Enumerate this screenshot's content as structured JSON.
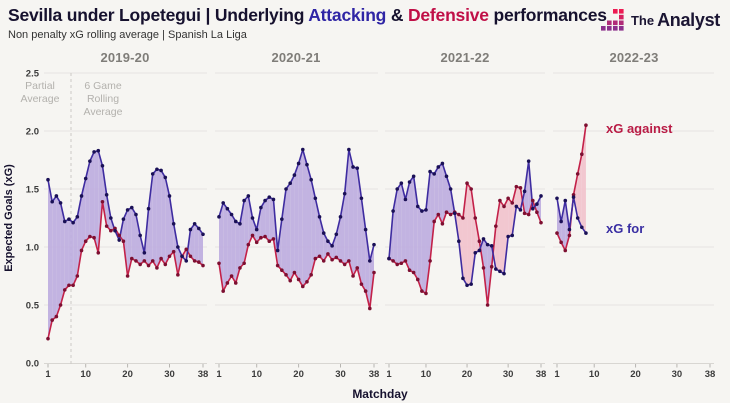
{
  "header": {
    "title_prefix": "Sevilla under Lopetegui | Underlying ",
    "title_attacking": "Attacking",
    "title_amp": " & ",
    "title_defensive": "Defensive",
    "title_suffix": " performances",
    "subtitle": "Non penalty xG rolling average | Spanish La Liga"
  },
  "logo": {
    "the": "The",
    "analyst": "Analyst"
  },
  "annotations": {
    "partial_average_lines": [
      "Partial",
      "Average"
    ],
    "rolling_average_lines": [
      "6 Game",
      "Rolling",
      "Average"
    ]
  },
  "legend": {
    "against_label": "xG against",
    "for_label": "xG for"
  },
  "axes": {
    "y_label": "Expected Goals (xG)",
    "x_label": "Matchday",
    "y_ticks": [
      0.0,
      0.5,
      1.0,
      1.5,
      2.0,
      2.5
    ],
    "x_ticks": [
      1,
      10,
      20,
      30,
      38
    ],
    "ylim": [
      0,
      2.5
    ]
  },
  "colors": {
    "background": "#f6f5f2",
    "for_line": "#3e2ca0",
    "for_dot": "#1a1056",
    "against_line": "#c32149",
    "against_dot": "#7d0f31",
    "fill_for_above": "#bdacdf",
    "fill_against_above": "#f2c2cc",
    "grid": "#e6e4e1",
    "baseline": "#d8d6d2",
    "dashed_line": "#ccc9c5",
    "tick_text": "#3c3c3c",
    "accent_attacking": "#2f25a5",
    "accent_defensive": "#c00f47"
  },
  "chart_data": {
    "type": "line",
    "title": "Sevilla under Lopetegui | Underlying Attacking & Defensive performances",
    "subtitle": "Non penalty xG rolling average | Spanish La Liga",
    "xlabel": "Matchday",
    "ylabel": "Expected Goals (xG)",
    "ylim": [
      0,
      2.5
    ],
    "legend_position": "right",
    "grid": "horizontal",
    "series_names": [
      "xG for",
      "xG against"
    ],
    "seasons": [
      {
        "label": "2019-20",
        "xg_for": [
          1.58,
          1.39,
          1.44,
          1.38,
          1.22,
          1.24,
          1.21,
          1.26,
          1.44,
          1.59,
          1.74,
          1.82,
          1.83,
          1.7,
          1.45,
          1.25,
          1.14,
          1.06,
          1.24,
          1.32,
          1.34,
          1.28,
          1.1,
          0.95,
          1.33,
          1.63,
          1.67,
          1.66,
          1.6,
          1.44,
          1.2,
          1.0,
          0.92,
          0.88,
          1.15,
          1.2,
          1.16,
          1.11
        ],
        "xg_against": [
          0.21,
          0.37,
          0.4,
          0.5,
          0.63,
          0.67,
          0.67,
          0.75,
          0.97,
          1.05,
          1.09,
          1.08,
          0.95,
          1.39,
          1.18,
          1.14,
          1.16,
          1.1,
          1.05,
          0.75,
          0.9,
          0.88,
          0.85,
          0.88,
          0.84,
          0.88,
          0.82,
          0.9,
          0.85,
          0.92,
          0.96,
          0.76,
          0.92,
          0.98,
          0.92,
          0.88,
          0.87,
          0.84
        ]
      },
      {
        "label": "2020-21",
        "xg_for": [
          1.26,
          1.38,
          1.33,
          1.28,
          1.22,
          1.2,
          1.4,
          1.44,
          1.25,
          1.15,
          1.34,
          1.4,
          1.43,
          1.41,
          0.97,
          1.24,
          1.5,
          1.55,
          1.62,
          1.72,
          1.84,
          1.71,
          1.58,
          1.42,
          1.26,
          1.12,
          1.05,
          1.01,
          1.11,
          1.26,
          1.46,
          1.84,
          1.69,
          1.68,
          1.42,
          1.15,
          0.88,
          1.02
        ],
        "xg_against": [
          0.86,
          0.62,
          0.69,
          0.75,
          0.69,
          0.82,
          0.86,
          1.02,
          1.1,
          1.04,
          1.08,
          1.09,
          1.05,
          1.07,
          0.84,
          0.8,
          0.76,
          0.71,
          0.78,
          0.72,
          0.66,
          0.7,
          0.76,
          0.9,
          0.92,
          0.88,
          0.94,
          0.89,
          0.91,
          0.88,
          0.85,
          0.88,
          0.75,
          0.82,
          0.68,
          0.62,
          0.47,
          0.78
        ]
      },
      {
        "label": "2021-22",
        "xg_for": [
          0.9,
          1.31,
          1.5,
          1.55,
          1.41,
          1.56,
          1.61,
          1.35,
          1.31,
          1.32,
          1.65,
          1.63,
          1.69,
          1.72,
          1.61,
          1.5,
          1.29,
          1.05,
          0.73,
          0.67,
          0.68,
          0.95,
          0.97,
          1.07,
          1.02,
          1.01,
          0.81,
          0.79,
          0.77,
          1.09,
          1.1,
          1.35,
          1.32,
          1.48,
          1.74,
          1.33,
          1.37,
          1.44
        ],
        "xg_against": [
          0.9,
          0.88,
          0.85,
          0.86,
          0.88,
          0.8,
          0.78,
          0.72,
          0.62,
          0.6,
          0.88,
          1.22,
          1.28,
          1.2,
          1.3,
          1.28,
          1.3,
          1.28,
          1.25,
          1.55,
          1.5,
          1.25,
          1.05,
          0.82,
          0.5,
          0.83,
          1.18,
          1.4,
          1.35,
          1.42,
          1.38,
          1.52,
          1.51,
          1.29,
          1.28,
          1.4,
          1.3,
          1.21
        ]
      },
      {
        "label": "2022-23",
        "xg_for": [
          1.42,
          1.22,
          1.4,
          1.15,
          1.43,
          1.25,
          1.17,
          1.12
        ],
        "xg_against": [
          1.12,
          1.04,
          0.97,
          1.1,
          1.45,
          1.63,
          1.8,
          2.05
        ]
      }
    ],
    "annotations": [
      "Partial Average",
      "6 Game Rolling Average"
    ]
  }
}
